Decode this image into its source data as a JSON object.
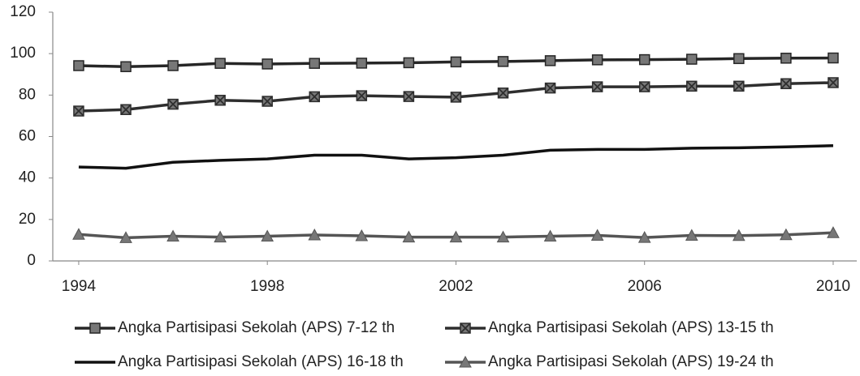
{
  "chart_data": {
    "type": "line",
    "x": [
      1994,
      1995,
      1996,
      1997,
      1998,
      1999,
      2000,
      2001,
      2002,
      2003,
      2004,
      2005,
      2006,
      2007,
      2008,
      2009,
      2010
    ],
    "xlim": [
      1993.45,
      2010.5
    ],
    "xticks": [
      1994,
      1998,
      2002,
      2006,
      2010
    ],
    "ylim": [
      0,
      120
    ],
    "yticks": [
      0,
      20,
      40,
      60,
      80,
      100,
      120
    ],
    "grid": false,
    "legend": "bottom",
    "series": [
      {
        "name": "Angka Partisipasi Sekolah (APS) 7-12 th",
        "color": "#262626",
        "marker": "square",
        "values": [
          94.2,
          93.7,
          94.2,
          95.3,
          95,
          95.3,
          95.4,
          95.6,
          96,
          96.2,
          96.6,
          97,
          97.1,
          97.3,
          97.6,
          97.8,
          97.9
        ]
      },
      {
        "name": "Angka Partisipasi Sekolah (APS) 13-15 th",
        "color": "#2e2e2e",
        "marker": "square-x",
        "values": [
          72.3,
          73,
          75.6,
          77.5,
          77,
          79.2,
          79.7,
          79.3,
          79,
          81,
          83.4,
          84,
          84,
          84.3,
          84.3,
          85.5,
          86
        ]
      },
      {
        "name": "Angka Partisipasi Sekolah (APS) 16-18 th",
        "color": "#111111",
        "marker": "none",
        "values": [
          45.3,
          44.7,
          47.6,
          48.5,
          49.2,
          51,
          51,
          49.2,
          49.8,
          51,
          53.4,
          53.8,
          53.8,
          54.4,
          54.6,
          55,
          55.6
        ]
      },
      {
        "name": "Angka Partisipasi Sekolah (APS) 19-24 th",
        "color": "#555555",
        "marker": "triangle",
        "values": [
          12.8,
          11.2,
          11.9,
          11.5,
          11.9,
          12.5,
          12.1,
          11.5,
          11.5,
          11.5,
          11.9,
          12.3,
          11.3,
          12.3,
          12.2,
          12.6,
          13.6
        ]
      }
    ]
  }
}
